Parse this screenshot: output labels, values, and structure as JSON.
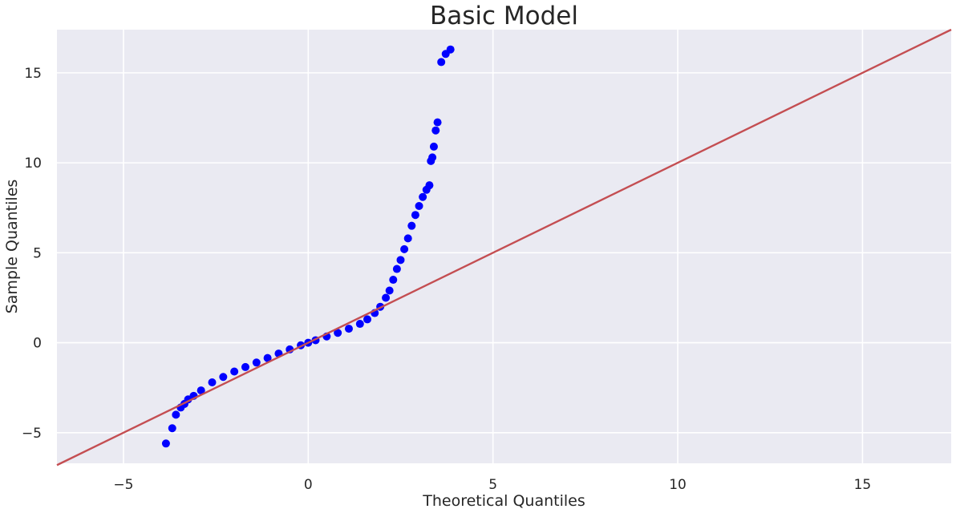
{
  "chart_data": {
    "type": "scatter",
    "title": "Basic Model",
    "xlabel": "Theoretical Quantiles",
    "ylabel": "Sample Quantiles",
    "xlim": [
      -6.8,
      17.4
    ],
    "ylim": [
      -6.7,
      17.4
    ],
    "xticks": [
      -5,
      0,
      5,
      10,
      15
    ],
    "yticks": [
      -5,
      0,
      5,
      10,
      15
    ],
    "xtick_labels": [
      "−5",
      "0",
      "5",
      "10",
      "15"
    ],
    "ytick_labels": [
      "−5",
      "0",
      "5",
      "10",
      "15"
    ],
    "grid": true,
    "background_color": "#EAEAF2",
    "grid_color": "#FFFFFF",
    "point_color": "#0000FF",
    "line_color": "#C44E52",
    "reference_line": {
      "slope": 1,
      "intercept": 0
    },
    "series": [
      {
        "points": [
          [
            -3.85,
            -5.6
          ],
          [
            -3.68,
            -4.75
          ],
          [
            -3.58,
            -4.0
          ],
          [
            -3.45,
            -3.6
          ],
          [
            -3.35,
            -3.4
          ],
          [
            -3.25,
            -3.15
          ],
          [
            -3.1,
            -2.95
          ],
          [
            -2.9,
            -2.65
          ],
          [
            -2.6,
            -2.2
          ],
          [
            -2.3,
            -1.9
          ],
          [
            -2.0,
            -1.6
          ],
          [
            -1.7,
            -1.35
          ],
          [
            -1.4,
            -1.1
          ],
          [
            -1.1,
            -0.85
          ],
          [
            -0.8,
            -0.6
          ],
          [
            -0.5,
            -0.37
          ],
          [
            -0.2,
            -0.14
          ],
          [
            0.0,
            0.0
          ],
          [
            0.2,
            0.14
          ],
          [
            0.5,
            0.35
          ],
          [
            0.8,
            0.55
          ],
          [
            1.1,
            0.78
          ],
          [
            1.4,
            1.05
          ],
          [
            1.6,
            1.3
          ],
          [
            1.8,
            1.65
          ],
          [
            1.95,
            2.0
          ],
          [
            2.1,
            2.5
          ],
          [
            2.2,
            2.9
          ],
          [
            2.3,
            3.5
          ],
          [
            2.4,
            4.1
          ],
          [
            2.5,
            4.6
          ],
          [
            2.6,
            5.2
          ],
          [
            2.7,
            5.8
          ],
          [
            2.8,
            6.5
          ],
          [
            2.9,
            7.1
          ],
          [
            3.0,
            7.6
          ],
          [
            3.1,
            8.1
          ],
          [
            3.2,
            8.5
          ],
          [
            3.28,
            8.75
          ],
          [
            3.32,
            10.1
          ],
          [
            3.36,
            10.3
          ],
          [
            3.4,
            10.9
          ],
          [
            3.45,
            11.8
          ],
          [
            3.5,
            12.25
          ],
          [
            3.6,
            15.6
          ],
          [
            3.72,
            16.05
          ],
          [
            3.85,
            16.3
          ]
        ]
      }
    ]
  }
}
